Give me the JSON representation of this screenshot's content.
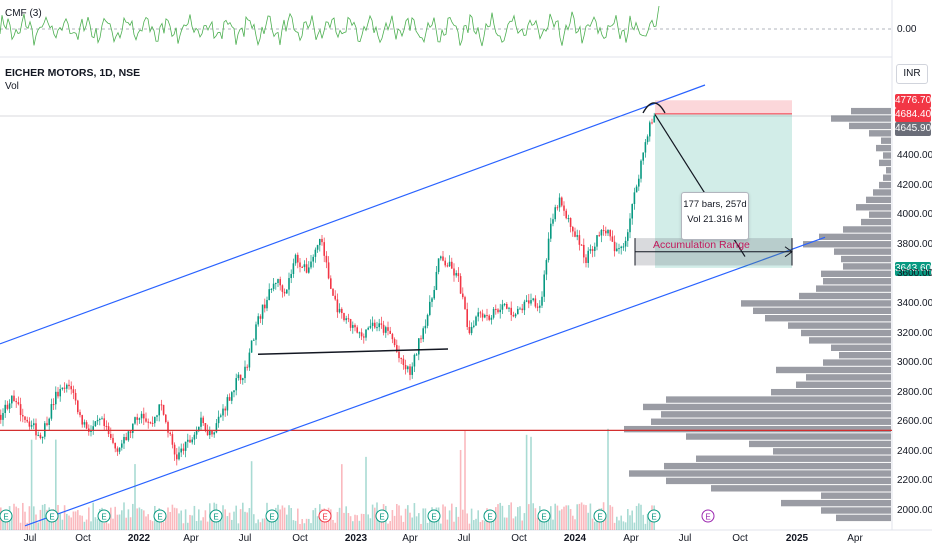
{
  "indicator": {
    "label": "CMF (3)",
    "zero_label": "0.00"
  },
  "header": {
    "symbol": "EICHER MOTORS, 1D, NSE",
    "volume_label": "Vol",
    "currency": "INR"
  },
  "price_boxes": [
    {
      "text": "4776.70",
      "color": "#f23645",
      "value": 4776.7
    },
    {
      "text": "4684.40",
      "color": "#f23645",
      "value": 4684.4
    },
    {
      "text": "4645.90",
      "color": "#6a6d78",
      "value": 4645.9
    },
    {
      "text": "3643.60",
      "color": "#089981",
      "value": 3643.6
    }
  ],
  "measure_box": {
    "line1": "177 bars, 257d",
    "line2": "Vol 21.316 M"
  },
  "annotations": {
    "accumulation": "Accumulation Range"
  },
  "event_markers": [
    "E",
    "E",
    "E",
    "E",
    "E",
    "E",
    "E",
    "E",
    "E",
    "E",
    "E",
    "E",
    "E",
    "E"
  ],
  "chart_data": {
    "type": "candlestick",
    "ylim": [
      1900,
      4900
    ],
    "yticks": [
      2000,
      2200,
      2400,
      2600,
      2800,
      3000,
      3200,
      3400,
      3600,
      3800,
      4000,
      4200,
      4400
    ],
    "ytick_labels": [
      "2000.00",
      "2200.00",
      "2400.00",
      "2600.00",
      "2800.00",
      "3000.00",
      "3200.00",
      "3400.00",
      "3600.00",
      "3800.00",
      "4000.00",
      "4200.00",
      "4400.00"
    ],
    "xticks": [
      "Jul",
      "Oct",
      "2022",
      "Apr",
      "Jul",
      "Oct",
      "2023",
      "Apr",
      "Jul",
      "Oct",
      "2024",
      "Apr",
      "Jul",
      "Oct",
      "2025",
      "Apr"
    ],
    "xticks_bold": [
      false,
      false,
      true,
      false,
      false,
      false,
      true,
      false,
      false,
      false,
      true,
      false,
      false,
      false,
      true,
      false
    ],
    "price_anchors": [
      [
        0,
        2650
      ],
      [
        10,
        2760
      ],
      [
        25,
        2630
      ],
      [
        40,
        2500
      ],
      [
        55,
        2780
      ],
      [
        70,
        2850
      ],
      [
        80,
        2620
      ],
      [
        90,
        2540
      ],
      [
        100,
        2610
      ],
      [
        115,
        2420
      ],
      [
        125,
        2480
      ],
      [
        140,
        2680
      ],
      [
        150,
        2580
      ],
      [
        160,
        2720
      ],
      [
        175,
        2360
      ],
      [
        190,
        2480
      ],
      [
        200,
        2600
      ],
      [
        210,
        2520
      ],
      [
        220,
        2650
      ],
      [
        235,
        2870
      ],
      [
        245,
        2960
      ],
      [
        255,
        3250
      ],
      [
        265,
        3420
      ],
      [
        275,
        3560
      ],
      [
        285,
        3490
      ],
      [
        295,
        3720
      ],
      [
        305,
        3620
      ],
      [
        315,
        3760
      ],
      [
        320,
        3860
      ],
      [
        330,
        3500
      ],
      [
        340,
        3310
      ],
      [
        350,
        3250
      ],
      [
        360,
        3180
      ],
      [
        370,
        3270
      ],
      [
        380,
        3240
      ],
      [
        390,
        3190
      ],
      [
        400,
        3000
      ],
      [
        410,
        2930
      ],
      [
        420,
        3190
      ],
      [
        430,
        3400
      ],
      [
        438,
        3700
      ],
      [
        448,
        3660
      ],
      [
        458,
        3560
      ],
      [
        468,
        3210
      ],
      [
        478,
        3360
      ],
      [
        488,
        3310
      ],
      [
        500,
        3390
      ],
      [
        515,
        3330
      ],
      [
        530,
        3440
      ],
      [
        540,
        3390
      ],
      [
        548,
        3860
      ],
      [
        558,
        4110
      ],
      [
        565,
        3980
      ],
      [
        575,
        3870
      ],
      [
        585,
        3700
      ],
      [
        595,
        3830
      ],
      [
        605,
        3910
      ],
      [
        615,
        3740
      ],
      [
        625,
        3840
      ],
      [
        633,
        4110
      ],
      [
        640,
        4350
      ],
      [
        648,
        4600
      ],
      [
        655,
        4665
      ]
    ],
    "volume_profile_rows": [
      [
        4700,
        40
      ],
      [
        4650,
        60
      ],
      [
        4600,
        42
      ],
      [
        4550,
        22
      ],
      [
        4500,
        10
      ],
      [
        4450,
        15
      ],
      [
        4400,
        8
      ],
      [
        4350,
        12
      ],
      [
        4300,
        5
      ],
      [
        4250,
        8
      ],
      [
        4200,
        12
      ],
      [
        4150,
        18
      ],
      [
        4100,
        25
      ],
      [
        4050,
        35
      ],
      [
        4000,
        22
      ],
      [
        3950,
        30
      ],
      [
        3900,
        48
      ],
      [
        3850,
        72
      ],
      [
        3800,
        88
      ],
      [
        3750,
        57
      ],
      [
        3700,
        50
      ],
      [
        3650,
        48
      ],
      [
        3600,
        70
      ],
      [
        3550,
        68
      ],
      [
        3500,
        75
      ],
      [
        3450,
        92
      ],
      [
        3400,
        150
      ],
      [
        3350,
        138
      ],
      [
        3300,
        126
      ],
      [
        3250,
        103
      ],
      [
        3200,
        90
      ],
      [
        3150,
        82
      ],
      [
        3100,
        60
      ],
      [
        3050,
        52
      ],
      [
        3000,
        68
      ],
      [
        2950,
        115
      ],
      [
        2900,
        85
      ],
      [
        2850,
        95
      ],
      [
        2800,
        120
      ],
      [
        2750,
        225
      ],
      [
        2700,
        248
      ],
      [
        2650,
        230
      ],
      [
        2600,
        240
      ],
      [
        2550,
        267
      ],
      [
        2500,
        205
      ],
      [
        2450,
        142
      ],
      [
        2400,
        118
      ],
      [
        2350,
        195
      ],
      [
        2300,
        227
      ],
      [
        2250,
        262
      ],
      [
        2200,
        225
      ],
      [
        2150,
        180
      ],
      [
        2100,
        70
      ],
      [
        2050,
        110
      ],
      [
        2000,
        70
      ],
      [
        1950,
        55
      ]
    ],
    "horizontal_line": 2545,
    "support_line": {
      "from": [
        258,
        3060
      ],
      "to": [
        448,
        3095
      ]
    },
    "channel_upper": {
      "from": [
        0,
        3130
      ],
      "to": [
        705,
        4880
      ]
    },
    "channel_lower": {
      "from": [
        25,
        1900
      ],
      "to": [
        825,
        3850
      ]
    },
    "short_position": {
      "entry": 4684.4,
      "stop": 4776.7,
      "target": 3643.6,
      "from_x": 655,
      "to_x": 792
    },
    "accumulation_range": {
      "top": 3845,
      "bottom": 3660,
      "from_x": 635,
      "to_x": 792
    },
    "arrow": {
      "from": [
        655,
        4680
      ],
      "to": [
        745,
        3720
      ]
    },
    "arc_top": {
      "x": 654,
      "y": 4745
    }
  }
}
